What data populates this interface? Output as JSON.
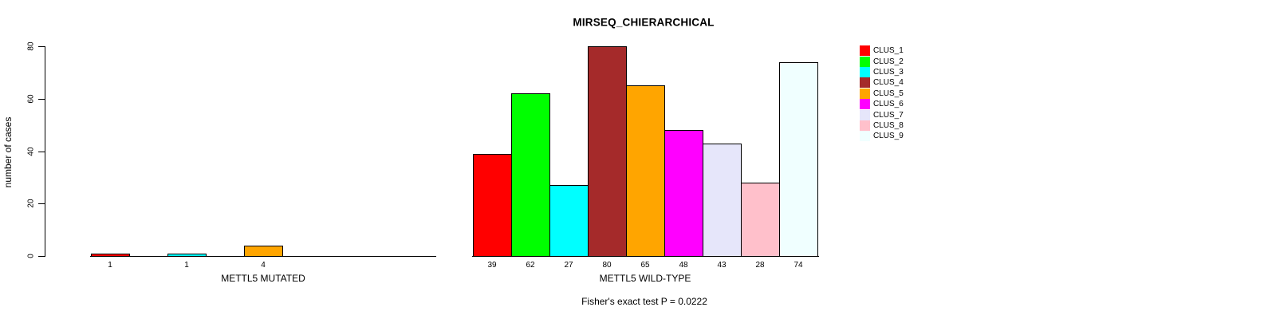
{
  "chart_data": {
    "type": "bar",
    "title": "MIRSEQ_CHIERARCHICAL",
    "ylabel": "number of cases",
    "ylim": [
      0,
      80
    ],
    "yticks": [
      0,
      20,
      40,
      60,
      80
    ],
    "grid": false,
    "legend_position": "right-top",
    "legend": [
      {
        "label": "CLUS_1",
        "color": "#FF0000"
      },
      {
        "label": "CLUS_2",
        "color": "#00FF00"
      },
      {
        "label": "CLUS_3",
        "color": "#00FFFF"
      },
      {
        "label": "CLUS_4",
        "color": "#A52A2A"
      },
      {
        "label": "CLUS_5",
        "color": "#FFA500"
      },
      {
        "label": "CLUS_6",
        "color": "#FF00FF"
      },
      {
        "label": "CLUS_7",
        "color": "#E6E6FA"
      },
      {
        "label": "CLUS_8",
        "color": "#FFC0CB"
      },
      {
        "label": "CLUS_9",
        "color": "#F0FFFF"
      }
    ],
    "groups": [
      {
        "label": "METTL5 MUTATED",
        "values": [
          1,
          0,
          1,
          0,
          4,
          0,
          0,
          0,
          0
        ],
        "bar_labels": [
          "1",
          "",
          "1",
          "",
          "4",
          "",
          "",
          "",
          ""
        ]
      },
      {
        "label": "METTL5 WILD-TYPE",
        "values": [
          39,
          62,
          27,
          80,
          65,
          48,
          43,
          28,
          74
        ],
        "bar_labels": [
          "39",
          "62",
          "27",
          "80",
          "65",
          "48",
          "43",
          "28",
          "74"
        ]
      }
    ],
    "annotation": "Fisher's exact test P = 0.0222"
  }
}
